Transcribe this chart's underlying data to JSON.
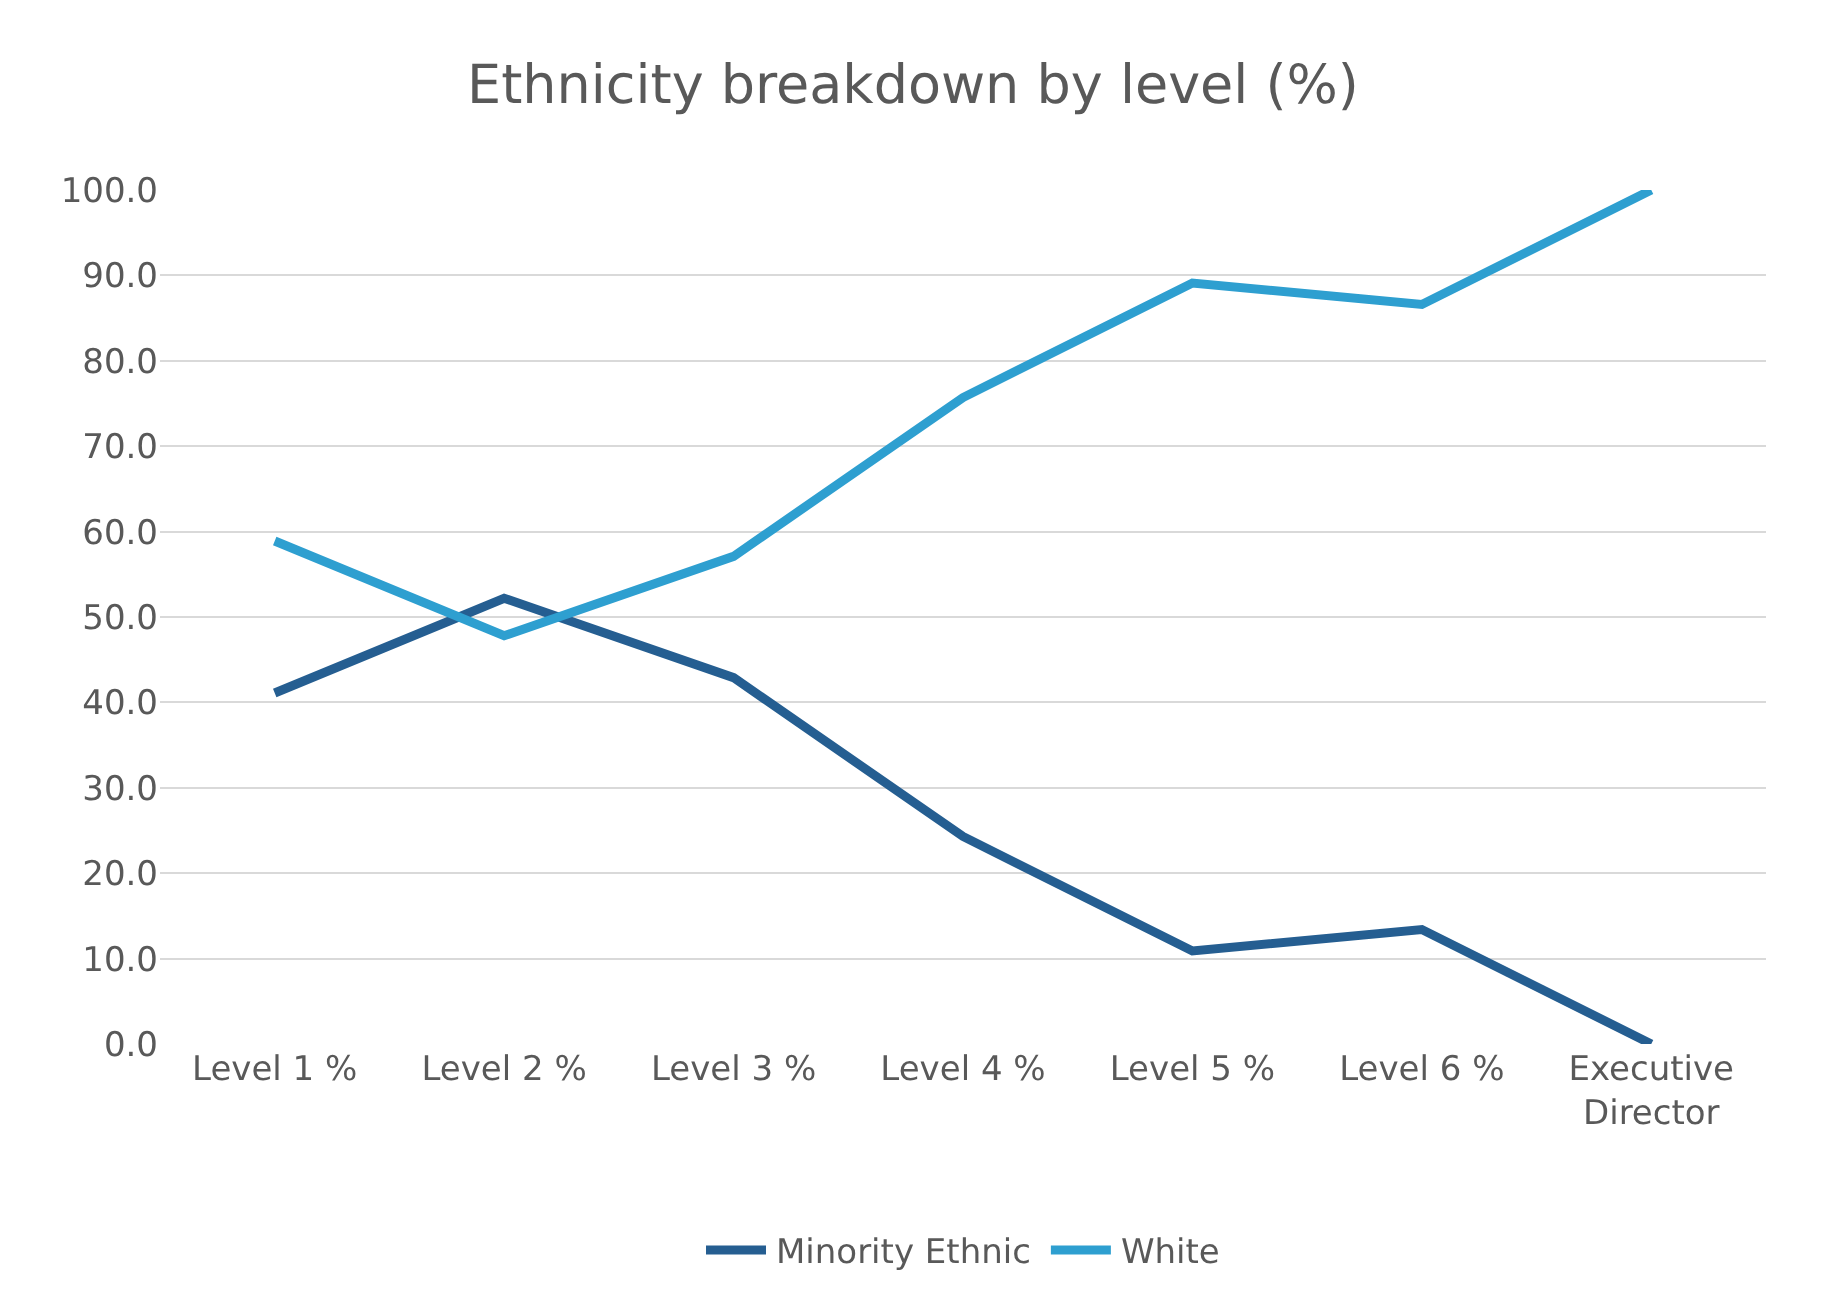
{
  "chart_data": {
    "type": "line",
    "title": "Ethnicity breakdown by level (%)",
    "categories": [
      "Level 1 %",
      "Level 2 %",
      "Level 3 %",
      "Level 4 %",
      "Level 5 %",
      "Level 6 %",
      "Executive Director"
    ],
    "series": [
      {
        "name": "Minority Ethnic",
        "color": "#255e91",
        "values": [
          41.1,
          52.2,
          42.9,
          24.3,
          10.9,
          13.4,
          0.0
        ]
      },
      {
        "name": "White",
        "color": "#2e9fd0",
        "values": [
          58.9,
          47.8,
          57.1,
          75.7,
          89.1,
          86.6,
          100.0
        ]
      }
    ],
    "ylim": [
      0,
      100
    ],
    "yticks": [
      {
        "value": 0,
        "label": "0.0"
      },
      {
        "value": 10,
        "label": "10.0"
      },
      {
        "value": 20,
        "label": "20.0"
      },
      {
        "value": 30,
        "label": "30.0"
      },
      {
        "value": 40,
        "label": "40.0"
      },
      {
        "value": 50,
        "label": "50.0"
      },
      {
        "value": 60,
        "label": "60.0"
      },
      {
        "value": 70,
        "label": "70.0"
      },
      {
        "value": 80,
        "label": "80.0"
      },
      {
        "value": 90,
        "label": "90.0"
      },
      {
        "value": 100,
        "label": "100.0"
      }
    ],
    "grid": "y",
    "legend": "bottom",
    "marker": "none",
    "line_style": "solid"
  }
}
